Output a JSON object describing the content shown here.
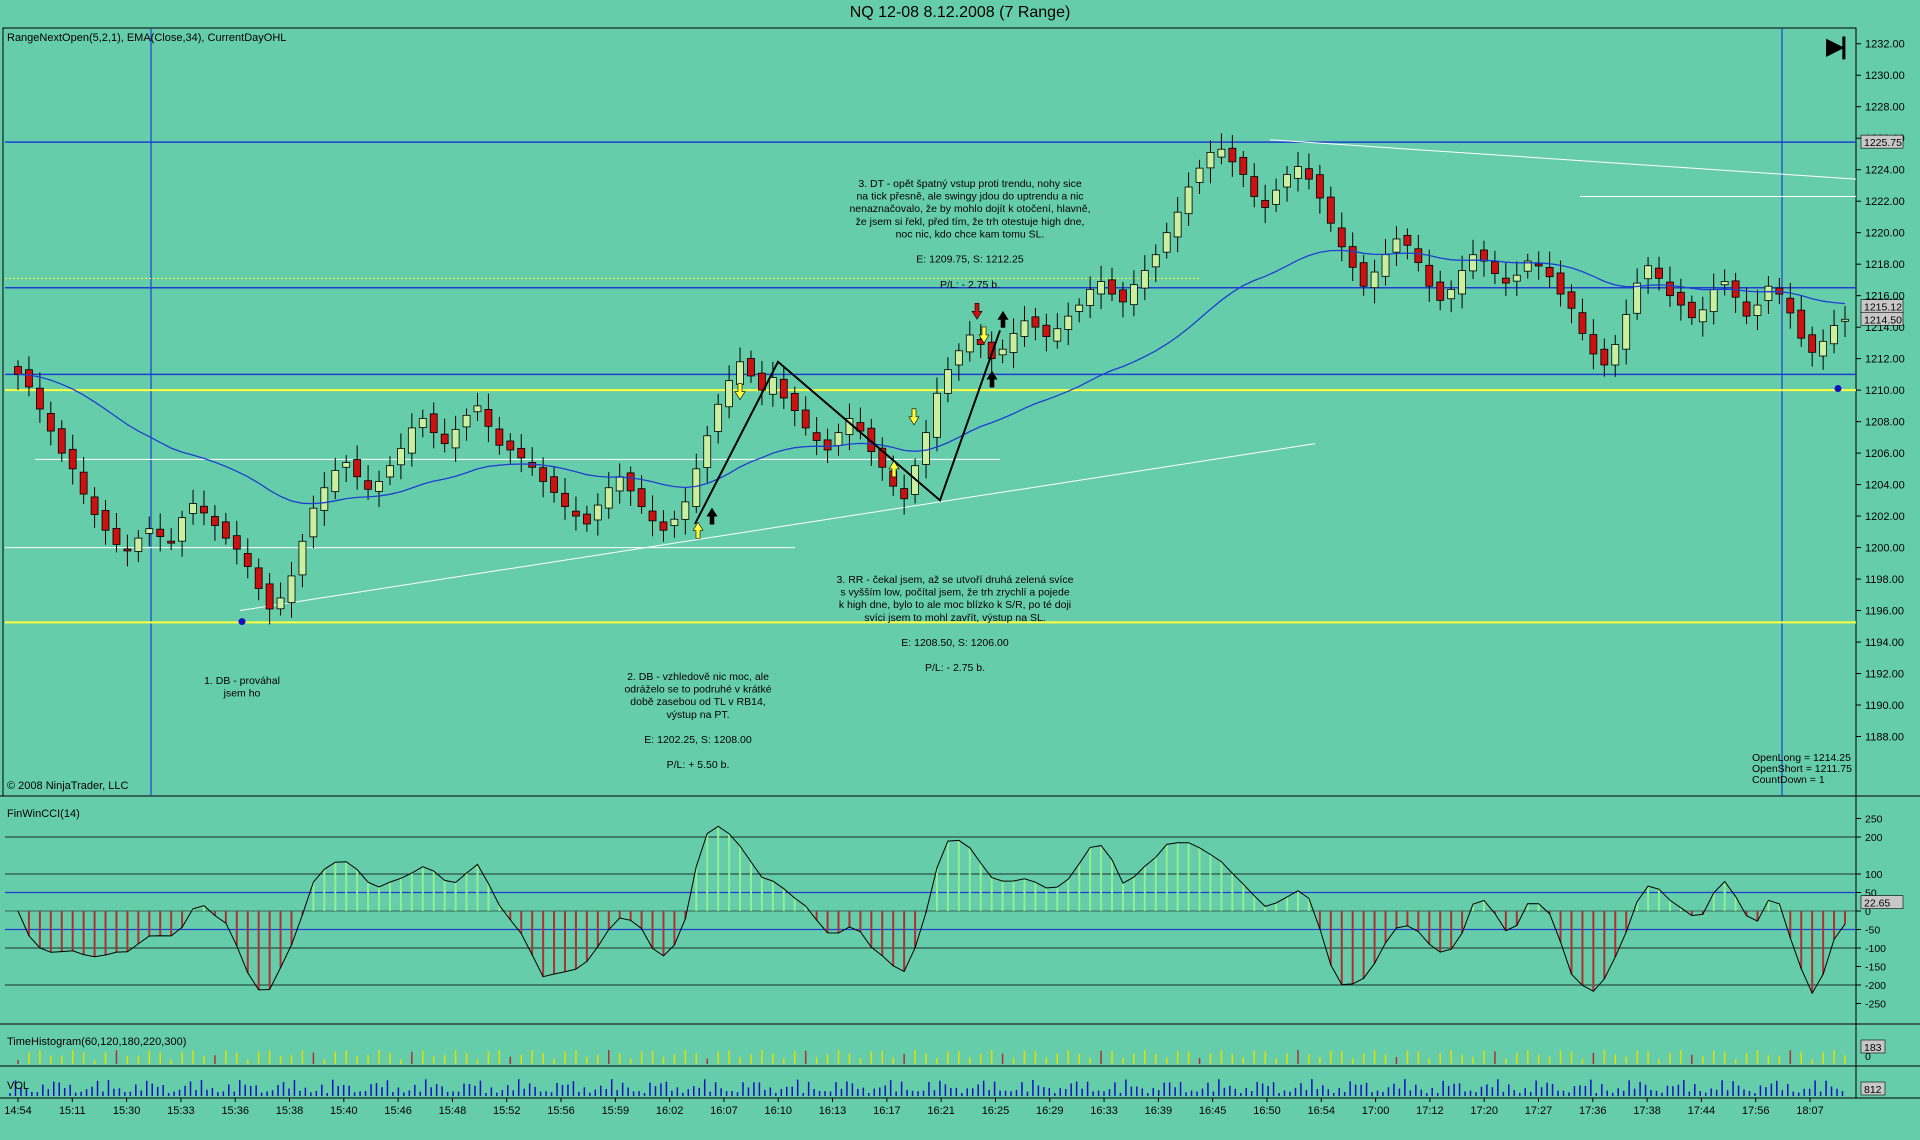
{
  "title": "NQ 12-08  8.12.2008 (7 Range)",
  "indicator_label": "RangeNextOpen(5,2,1), EMA(Close,34), CurrentDayOHL",
  "copyright": "© 2008 NinjaTrader, LLC",
  "go_to_end_label": "▶|",
  "colors": {
    "background": "#66CDAA",
    "up_candle": "#C8F0A0",
    "down_candle": "#CC1111",
    "ema": "#1E3FD0",
    "level_blue": "#1E3FD0",
    "level_yellow": "#FFFF40",
    "cci_up": "#90EE90",
    "cci_down": "#B03030"
  },
  "info_box": [
    "OpenLong = 1214.25",
    "OpenShort = 1211.75",
    "CountDown = 1"
  ],
  "annotations": [
    {
      "id": "db1",
      "lines": [
        "1. DB - prováhal",
        "jsem ho"
      ]
    },
    {
      "id": "db2",
      "lines": [
        "2. DB - vzhledově nic moc, ale",
        "odráželo se to podruhé v krátké",
        "době zasebou od TL v RB14,",
        "výstup na PT.",
        "",
        "E: 1202.25, S: 1208.00",
        "",
        "P/L: + 5.50 b."
      ]
    },
    {
      "id": "rr3",
      "lines": [
        "3. RR - čekal jsem, až se utvoří druhá zelená svíce",
        "s vyšším low, počítal jsem, že trh zrychlí a pojede",
        "k high dne, bylo to ale moc blízko k S/R, po té doji",
        "svíci jsem to mohl zavřít, výstup na SL.",
        "",
        "E: 1208.50, S: 1206.00",
        "",
        "P/L: - 2.75 b."
      ]
    },
    {
      "id": "dt3",
      "lines": [
        "3. DT - opět špatný vstup proti trendu, nohy sice",
        "na tick přesně, ale swingy jdou do uptrendu a nic",
        "nenaznačovalo, že by mohlo dojít k otočení, hlavně,",
        "že jsem si řekl, před tím, že trh otestuje high dne,",
        "noc nic, kdo chce kam tomu SL.",
        "",
        "E: 1209.75, S: 1212.25",
        "",
        "P/L: - 2.75 b."
      ]
    }
  ],
  "price_labels": {
    "high": "1225.75",
    "ema_last": "1215.12",
    "last": "1214.50"
  },
  "cci_label": "FinWinCCI(14)",
  "cci_value": "22.65",
  "timehist_label": "TimeHistogram(60,120,180,220,300)",
  "timehist_value": "183",
  "vol_label": "VOL",
  "vol_value": "812",
  "chart_data": {
    "type": "candlestick",
    "instrument": "NQ 12-08",
    "price_axis": {
      "min": 1186,
      "max": 1233,
      "ticks": [
        1188,
        1190,
        1192,
        1194,
        1196,
        1198,
        1200,
        1202,
        1204,
        1206,
        1208,
        1210,
        1212,
        1214,
        1216,
        1218,
        1220,
        1222,
        1224,
        1226,
        1228,
        1230,
        1232
      ]
    },
    "time_labels": [
      "14:54",
      "15:11",
      "15:30",
      "15:33",
      "15:36",
      "15:38",
      "15:40",
      "15:46",
      "15:48",
      "15:52",
      "15:56",
      "15:59",
      "16:02",
      "16:07",
      "16:10",
      "16:13",
      "16:17",
      "16:21",
      "16:25",
      "16:29",
      "16:33",
      "16:39",
      "16:45",
      "16:50",
      "16:54",
      "17:00",
      "17:12",
      "17:20",
      "17:27",
      "17:36",
      "17:38",
      "17:44",
      "17:56",
      "18:07"
    ],
    "levels": {
      "day_high": 1225.75,
      "open_line": 1216.5,
      "resistance": 1211,
      "yellow_upper": 1210,
      "yellow_lower": 1195.25
    },
    "closes": [
      1211.0,
      1210.2,
      1208.8,
      1207.4,
      1206.0,
      1205.0,
      1203.4,
      1202.1,
      1201.1,
      1200.2,
      1199.8,
      1200.6,
      1201.2,
      1200.7,
      1200.3,
      1201.9,
      1202.8,
      1202.2,
      1201.4,
      1200.6,
      1199.9,
      1198.8,
      1197.4,
      1196.1,
      1196.8,
      1198.2,
      1200.4,
      1202.5,
      1203.8,
      1204.9,
      1205.4,
      1204.5,
      1203.7,
      1204.2,
      1205.2,
      1206.3,
      1207.6,
      1208.2,
      1207.3,
      1206.6,
      1207.5,
      1208.4,
      1209.0,
      1207.7,
      1206.5,
      1206.2,
      1205.7,
      1205.1,
      1204.2,
      1203.5,
      1202.6,
      1202.0,
      1201.5,
      1202.7,
      1203.8,
      1204.5,
      1203.6,
      1202.6,
      1201.7,
      1201.1,
      1201.8,
      1202.9,
      1205.0,
      1207.1,
      1209.1,
      1210.6,
      1211.8,
      1210.9,
      1210.0,
      1210.8,
      1209.5,
      1208.7,
      1207.6,
      1206.8,
      1206.2,
      1207.3,
      1208.2,
      1207.4,
      1206.1,
      1205.1,
      1203.9,
      1203.1,
      1205.2,
      1207.3,
      1209.8,
      1211.3,
      1212.5,
      1213.5,
      1212.9,
      1212.0,
      1212.6,
      1213.6,
      1214.4,
      1214.0,
      1213.4,
      1213.9,
      1214.7,
      1215.4,
      1216.4,
      1216.9,
      1216.1,
      1215.6,
      1216.7,
      1217.6,
      1218.6,
      1220.0,
      1221.3,
      1222.9,
      1224.1,
      1225.1,
      1225.3,
      1224.5,
      1223.7,
      1222.3,
      1221.6,
      1222.7,
      1223.7,
      1224.2,
      1223.4,
      1222.2,
      1220.6,
      1219.1,
      1217.8,
      1216.6,
      1217.5,
      1218.6,
      1219.6,
      1219.2,
      1218.1,
      1216.6,
      1215.7,
      1216.4,
      1217.6,
      1218.6,
      1218.2,
      1217.4,
      1216.8,
      1217.3,
      1218.2,
      1218.0,
      1217.2,
      1216.1,
      1215.2,
      1213.6,
      1212.3,
      1211.6,
      1212.9,
      1214.8,
      1216.8,
      1217.9,
      1217.1,
      1216.0,
      1215.4,
      1214.6,
      1215.1,
      1216.4,
      1216.9,
      1215.9,
      1214.7,
      1215.4,
      1216.6,
      1216.1,
      1214.9,
      1213.3,
      1212.4,
      1213.1,
      1214.1,
      1214.5
    ]
  }
}
